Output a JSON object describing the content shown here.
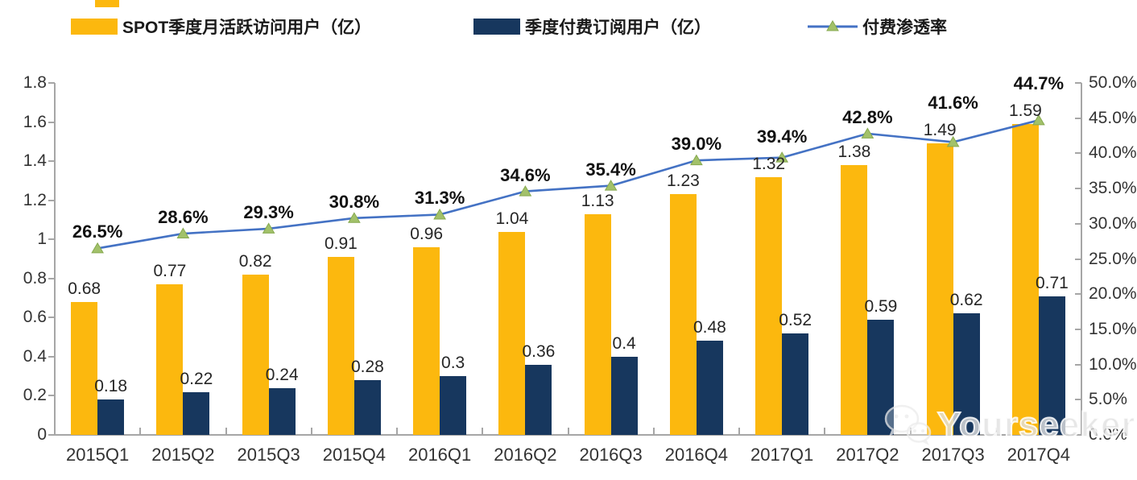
{
  "legend": {
    "items": [
      {
        "label": "SPOT季度月活跃访问用户（亿）",
        "color": "#FCB80E",
        "type": "bar"
      },
      {
        "label": "季度付费订阅用户（亿）",
        "color": "#17375E",
        "type": "bar"
      },
      {
        "label": "付费渗透率",
        "color": "#4472C4",
        "marker_color": "#A2C16A",
        "type": "line"
      }
    ]
  },
  "watermark": {
    "text": "Yourseeker",
    "icon": "wechat-bubbles-icon"
  },
  "chart_data": {
    "type": "bar",
    "subtype": "grouped bars with secondary-axis line",
    "title": "",
    "xlabel": "",
    "ylabel": "",
    "categories": [
      "2015Q1",
      "2015Q2",
      "2015Q3",
      "2015Q4",
      "2016Q1",
      "2016Q2",
      "2016Q3",
      "2016Q4",
      "2017Q1",
      "2017Q2",
      "2017Q3",
      "2017Q4"
    ],
    "series": [
      {
        "name": "SPOT季度月活跃访问用户（亿）",
        "type": "bar",
        "axis": "left",
        "color": "#FCB80E",
        "values": [
          0.68,
          0.77,
          0.82,
          0.91,
          0.96,
          1.04,
          1.13,
          1.23,
          1.32,
          1.38,
          1.49,
          1.59
        ],
        "labels": [
          "0.68",
          "0.77",
          "0.82",
          "0.91",
          "0.96",
          "1.04",
          "1.13",
          "1.23",
          "1.32",
          "1.38",
          "1.49",
          "1.59"
        ]
      },
      {
        "name": "季度付费订阅用户（亿）",
        "type": "bar",
        "axis": "left",
        "color": "#17375E",
        "values": [
          0.18,
          0.22,
          0.24,
          0.28,
          0.3,
          0.36,
          0.4,
          0.48,
          0.52,
          0.59,
          0.62,
          0.71
        ],
        "labels": [
          "0.18",
          "0.22",
          "0.24",
          "0.28",
          "0.3",
          "0.36",
          "0.4",
          "0.48",
          "0.52",
          "0.59",
          "0.62",
          "0.71"
        ]
      },
      {
        "name": "付费渗透率",
        "type": "line",
        "axis": "right",
        "color": "#4472C4",
        "marker": "triangle",
        "marker_color": "#A2C16A",
        "values": [
          26.5,
          28.6,
          29.3,
          30.8,
          31.3,
          34.6,
          35.4,
          39.0,
          39.4,
          42.8,
          41.6,
          44.7
        ],
        "labels": [
          "26.5%",
          "28.6%",
          "29.3%",
          "30.8%",
          "31.3%",
          "34.6%",
          "35.4%",
          "39.0%",
          "39.4%",
          "42.8%",
          "41.6%",
          "44.7%"
        ]
      }
    ],
    "left_axis": {
      "min": 0,
      "max": 1.8,
      "step": 0.2,
      "ticks": [
        "0",
        "0.2",
        "0.4",
        "0.6",
        "0.8",
        "1",
        "1.2",
        "1.4",
        "1.6",
        "1.8"
      ]
    },
    "right_axis": {
      "min": 0,
      "max": 50,
      "step": 5,
      "ticks": [
        "0.0%",
        "5.0%",
        "10.0%",
        "15.0%",
        "20.0%",
        "25.0%",
        "30.0%",
        "35.0%",
        "40.0%",
        "45.0%",
        "50.0%"
      ]
    },
    "grid": false,
    "legend_position": "top"
  }
}
